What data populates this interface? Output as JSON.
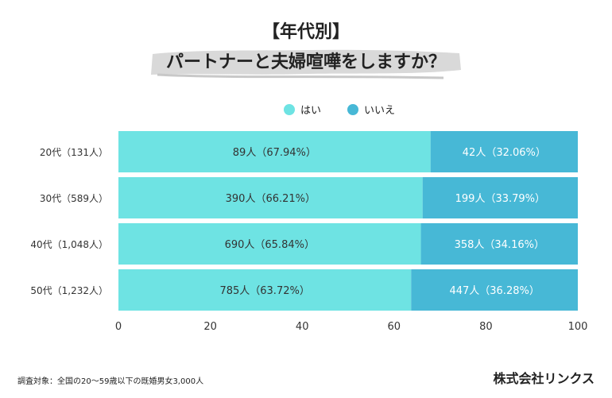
{
  "title_line1": "【年代別】",
  "title_line2": "パートナーと夫婦喧嘩をしますか？",
  "footnote": "調査対象：全国の20〜59歳以下の既婚男女3,000人",
  "company": "株式会社リンクス",
  "colors": {
    "yes": "#6ee3e3",
    "no": "#47b8d6",
    "brush": "#d9d9d9"
  },
  "chart_data": {
    "type": "bar",
    "orientation": "horizontal",
    "stacked": true,
    "categories": [
      "20代（131人）",
      "30代（589人）",
      "40代（1,048人）",
      "50代（1,232人）"
    ],
    "series": [
      {
        "name": "はい",
        "values": [
          67.94,
          66.21,
          65.84,
          63.72
        ],
        "labels": [
          "89人（67.94%）",
          "390人（66.21%）",
          "690人（65.84%）",
          "785人（63.72%）"
        ]
      },
      {
        "name": "いいえ",
        "values": [
          32.06,
          33.79,
          34.16,
          36.28
        ],
        "labels": [
          "42人（32.06%）",
          "199人（33.79%）",
          "358人（34.16%）",
          "447人（36.28%）"
        ]
      }
    ],
    "xlim": [
      0,
      100
    ],
    "xticks": [
      "0",
      "20",
      "40",
      "60",
      "80",
      "100"
    ],
    "legend_position": "top-center",
    "grid": false
  }
}
